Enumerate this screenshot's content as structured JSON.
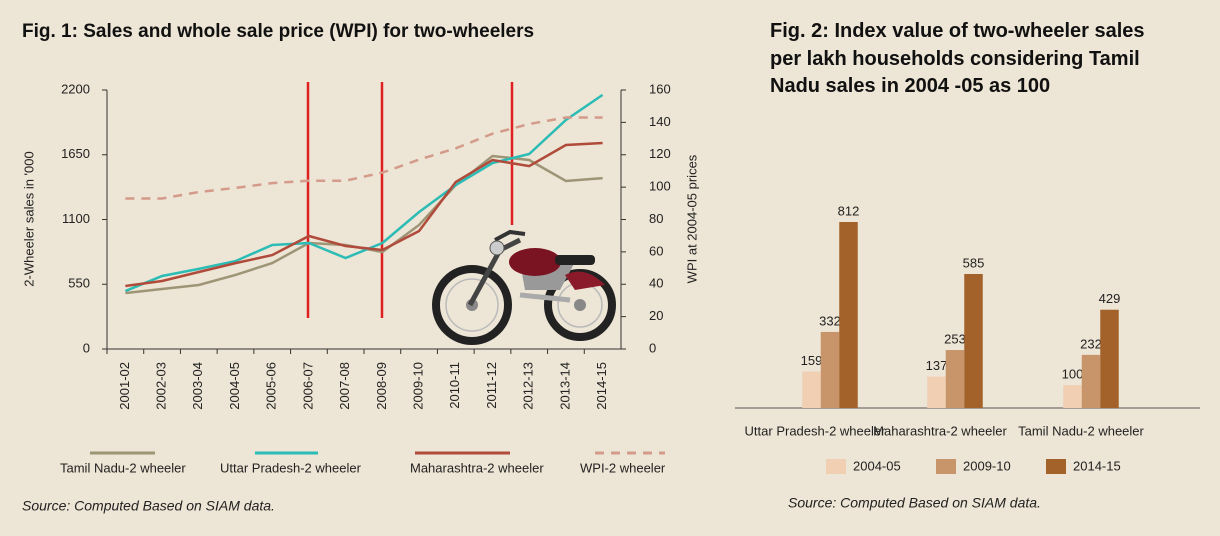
{
  "chart_data": [
    {
      "type": "line",
      "title": "Fig. 1: Sales and whole sale price (WPI) for two-wheelers",
      "y_label": "2-Wheeler sales in '000",
      "y2_label": "WPI at 2004-05 prices",
      "categories": [
        "2001-02",
        "2002-03",
        "2003-04",
        "2004-05",
        "2005-06",
        "2006-07",
        "2007-08",
        "2008-09",
        "2009-10",
        "2010-11",
        "2011-12",
        "2012-13",
        "2013-14",
        "2014-15"
      ],
      "series": [
        {
          "name": "Tamil Nadu-2 wheeler",
          "color": "#9e9577",
          "values": [
            476,
            510,
            544,
            629,
            730,
            900,
            883,
            824,
            1053,
            1393,
            1639,
            1605,
            1427,
            1452
          ]
        },
        {
          "name": "Uttar Pradesh-2 wheeler",
          "color": "#2cbcb6",
          "values": [
            493,
            620,
            680,
            747,
            883,
            900,
            773,
            900,
            1164,
            1393,
            1580,
            1656,
            1945,
            2158
          ]
        },
        {
          "name": "Maharashtra-2 wheeler",
          "color": "#b04a3a",
          "values": [
            535,
            578,
            654,
            730,
            798,
            960,
            875,
            841,
            1002,
            1419,
            1605,
            1554,
            1733,
            1750
          ]
        },
        {
          "name": "WPI-2 wheeler",
          "color": "#d49a8a",
          "line_style": "dashed",
          "axis": "y2",
          "values": [
            93,
            93,
            97,
            99.5,
            102.5,
            104,
            104,
            109,
            117,
            124,
            133,
            139,
            143,
            143
          ]
        }
      ],
      "ylim": [
        0,
        2200
      ],
      "yticks": [
        0,
        550,
        1100,
        1650,
        2200
      ],
      "y2lim": [
        0,
        160
      ],
      "y2ticks": [
        0,
        20,
        40,
        60,
        80,
        100,
        120,
        140,
        160
      ],
      "source": "Source: Computed Based on SIAM data."
    },
    {
      "type": "bar",
      "title": "Fig. 2: Index value of two-wheeler sales per lakh households considering Tamil Nadu sales in 2004 -05 as 100",
      "categories": [
        "Uttar Pradesh-2 wheeler",
        "Maharashtra-2 wheeler",
        "Tamil Nadu-2 wheeler"
      ],
      "series": [
        {
          "name": "2004-05",
          "color": "#f0cfb3",
          "values": [
            159,
            137,
            100
          ]
        },
        {
          "name": "2009-10",
          "color": "#c8956a",
          "values": [
            332,
            253,
            232
          ]
        },
        {
          "name": "2014-15",
          "color": "#a3622a",
          "values": [
            812,
            585,
            429
          ]
        }
      ],
      "source": "Source: Computed Based on SIAM data."
    }
  ]
}
